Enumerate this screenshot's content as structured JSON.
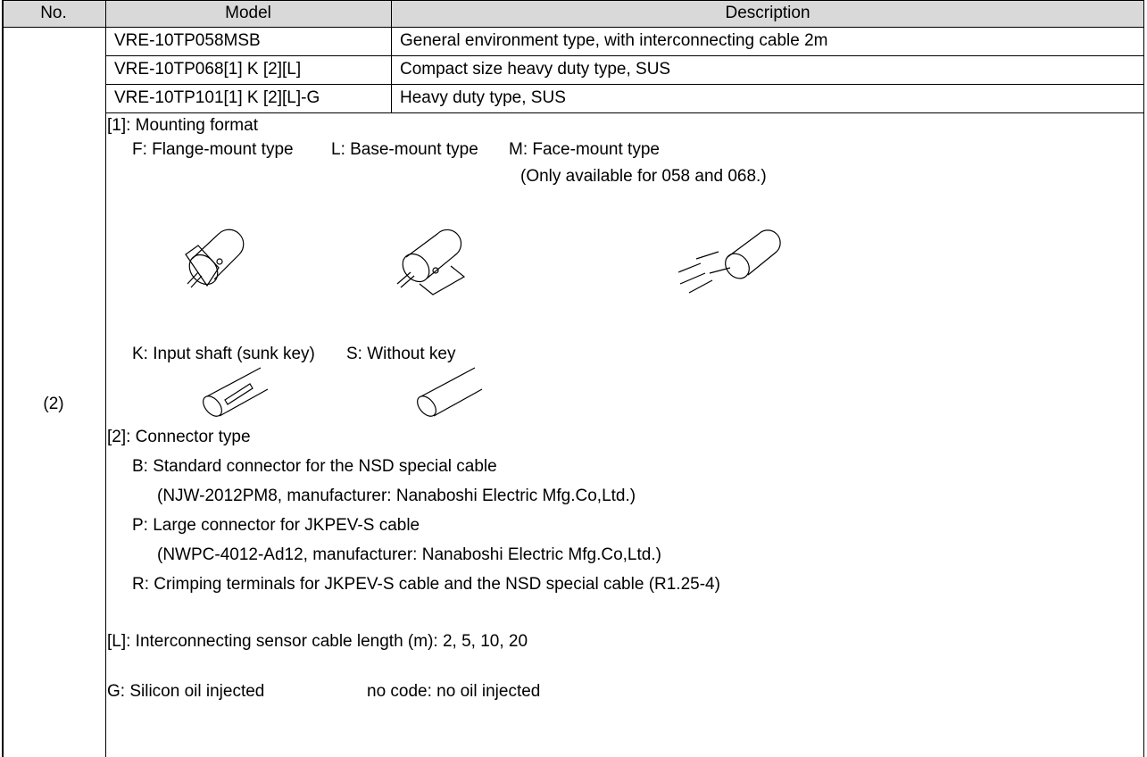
{
  "table": {
    "header": [
      "No.",
      "Model",
      "Description"
    ],
    "rows": [
      [
        "VRE-10TP058MSB",
        "General environment type, with interconnecting cable 2m"
      ],
      [
        "VRE-10TP068[1] K [2][L]",
        "Compact size heavy duty type, SUS"
      ],
      [
        "VRE-10TP101[1] K [2][L]-G",
        "Heavy duty type, SUS"
      ]
    ],
    "number": "(2)",
    "notes": {
      "mounting_title": "[1]: Mounting format",
      "mounting_options": [
        "F: Flange-mount type",
        "L: Base-mount type",
        "M: Face-mount type"
      ],
      "mounting_note": "(Only available for 058 and 068.)",
      "shaft_options": [
        "K: Input shaft (sunk key)",
        "S: Without key"
      ],
      "connector_title": "[2]: Connector type",
      "connector_lines": [
        "B: Standard connector for the NSD special cable",
        "(NJW-2012PM8, manufacturer: Nanaboshi Electric Mfg.Co,Ltd.)",
        "P: Large connector for JKPEV-S cable",
        "(NWPC-4012-Ad12, manufacturer: Nanaboshi Electric Mfg.Co,Ltd.)",
        "R: Crimping terminals for JKPEV-S cable and the NSD special cable (R1.25-4)"
      ],
      "cable_length": "[L]: Interconnecting sensor cable length (m): 2, 5, 10, 20",
      "oil_options": [
        "G: Silicon oil injected",
        "no code: no oil injected"
      ]
    }
  }
}
